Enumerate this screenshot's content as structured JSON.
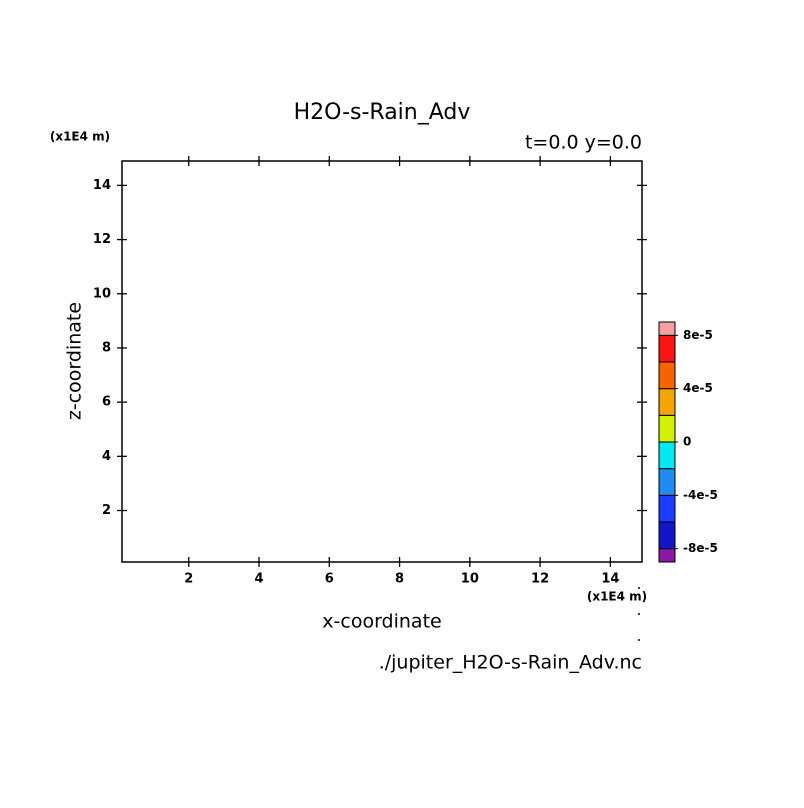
{
  "chart_data": {
    "type": "contour",
    "title": "H2O-s-Rain_Adv",
    "subtitle": "t=0.0 y=0.0",
    "x_label": "x-coordinate",
    "y_label": "z-coordinate",
    "x_unit": "(x1E4 m)",
    "y_unit": "(x1E4 m)",
    "source": "./jupiter_H2O-s-Rain_Adv.nc",
    "xlim": [
      0.1,
      14.9
    ],
    "ylim": [
      0.1,
      14.9
    ],
    "xticks": [
      2,
      4,
      6,
      8,
      10,
      12,
      14
    ],
    "yticks": [
      2,
      4,
      6,
      8,
      10,
      12,
      14
    ],
    "colorbar": {
      "lim": [
        -9e-05,
        9e-05
      ],
      "levels": [
        -8e-05,
        -6e-05,
        -4e-05,
        -2e-05,
        0,
        2e-05,
        4e-05,
        6e-05,
        8e-05
      ],
      "colors": [
        "#8a1aa6",
        "#1414c8",
        "#1e3cff",
        "#1e8cf0",
        "#00e8f0",
        "#d2f000",
        "#f5a500",
        "#f56400",
        "#fa1414",
        "#f5a0a0"
      ],
      "ticks": [
        {
          "value": -8e-05,
          "label": "-8e-5"
        },
        {
          "value": -4e-05,
          "label": "-4e-5"
        },
        {
          "value": 0,
          "label": "0"
        },
        {
          "value": 4e-05,
          "label": "4e-5"
        },
        {
          "value": 8e-05,
          "label": "8e-5"
        }
      ]
    }
  }
}
